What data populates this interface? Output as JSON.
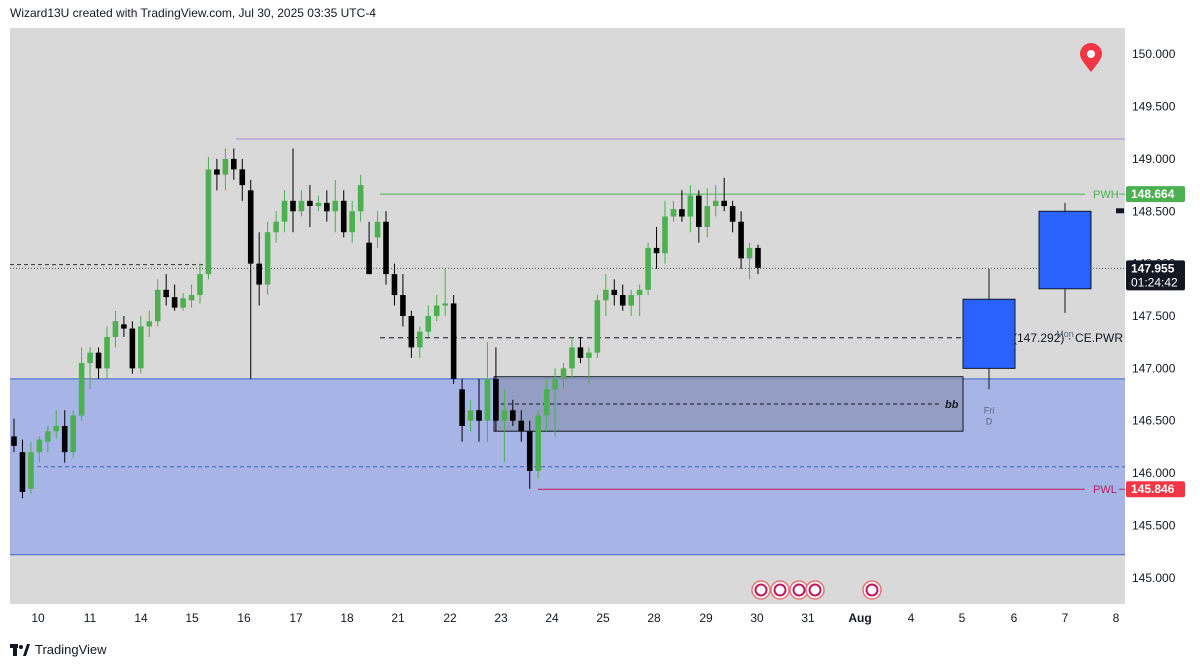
{
  "header": {
    "text": "Wizard13U created with TradingView.com, Jul 30, 2025 03:35 UTC-4"
  },
  "footer": {
    "brand": "TradingView"
  },
  "colors": {
    "plot_bg": "#d9d9d9",
    "zone_fill": "#a6b4e6",
    "zone_line": "#3f63c9",
    "bull": "#4caf50",
    "bear": "#000000",
    "pwh": "#4caf50",
    "pwl": "#c2185b",
    "purple_line": "#b48ad6",
    "forecast": "#2962ff",
    "pin": "#f23645"
  },
  "chart_data": {
    "type": "candlestick",
    "title": "",
    "yrange": [
      144.75,
      150.25
    ],
    "price_ticks": [
      "150.000",
      "149.500",
      "149.000",
      "148.500",
      "148.000",
      "147.500",
      "147.000",
      "146.500",
      "146.000",
      "145.500",
      "145.000"
    ],
    "date_ticks": [
      {
        "label": "10",
        "bold": false
      },
      {
        "label": "11",
        "bold": false
      },
      {
        "label": "14",
        "bold": false
      },
      {
        "label": "15",
        "bold": false
      },
      {
        "label": "16",
        "bold": false
      },
      {
        "label": "17",
        "bold": false
      },
      {
        "label": "18",
        "bold": false
      },
      {
        "label": "21",
        "bold": false
      },
      {
        "label": "22",
        "bold": false
      },
      {
        "label": "23",
        "bold": false
      },
      {
        "label": "24",
        "bold": false
      },
      {
        "label": "25",
        "bold": false
      },
      {
        "label": "28",
        "bold": false
      },
      {
        "label": "29",
        "bold": false
      },
      {
        "label": "30",
        "bold": false
      },
      {
        "label": "31",
        "bold": false
      },
      {
        "label": "Aug",
        "bold": true
      },
      {
        "label": "4",
        "bold": false
      },
      {
        "label": "5",
        "bold": false
      },
      {
        "label": "6",
        "bold": false
      },
      {
        "label": "7",
        "bold": false
      },
      {
        "label": "8",
        "bold": false
      }
    ],
    "current_price": "147.955",
    "countdown": "01:24:42",
    "pwh": {
      "label": "PWH",
      "price": 148.664,
      "price_text": "148.664"
    },
    "pwl": {
      "label": "PWL",
      "price": 145.846,
      "price_text": "145.846"
    },
    "purple_level": 149.19,
    "demand_zone": {
      "top": 146.9,
      "bottom": 145.22,
      "mid": 146.06
    },
    "bb_box": {
      "top": 146.92,
      "bottom": 146.4,
      "mid": 146.66,
      "label": "bb"
    },
    "ce_pwr": {
      "price": 147.292,
      "label": "0.5 (147.292) · CE.PWR"
    },
    "dotted_levels": [
      147.99,
      147.955
    ],
    "forecast": [
      {
        "open": 147.0,
        "close": 147.66,
        "high": 147.95,
        "low": 146.8,
        "label_day": "Fri",
        "label_sub": "D"
      },
      {
        "open": 147.76,
        "close": 148.5,
        "high": 148.58,
        "low": 147.53,
        "label_day": "Mon",
        "label_sub": ""
      }
    ],
    "candles": [
      {
        "o": 146.35,
        "h": 146.52,
        "l": 146.2,
        "c": 146.26
      },
      {
        "o": 146.2,
        "h": 146.32,
        "l": 145.76,
        "c": 145.82
      },
      {
        "o": 145.85,
        "h": 146.3,
        "l": 145.8,
        "c": 146.2
      },
      {
        "o": 146.2,
        "h": 146.35,
        "l": 146.1,
        "c": 146.32
      },
      {
        "o": 146.3,
        "h": 146.45,
        "l": 146.2,
        "c": 146.4
      },
      {
        "o": 146.4,
        "h": 146.6,
        "l": 146.33,
        "c": 146.45
      },
      {
        "o": 146.45,
        "h": 146.6,
        "l": 146.1,
        "c": 146.2
      },
      {
        "o": 146.2,
        "h": 146.6,
        "l": 146.15,
        "c": 146.55
      },
      {
        "o": 146.55,
        "h": 147.2,
        "l": 146.5,
        "c": 147.05
      },
      {
        "o": 147.05,
        "h": 147.2,
        "l": 146.8,
        "c": 147.15
      },
      {
        "o": 147.15,
        "h": 147.2,
        "l": 146.9,
        "c": 147.0
      },
      {
        "o": 147.0,
        "h": 147.4,
        "l": 146.9,
        "c": 147.3
      },
      {
        "o": 147.3,
        "h": 147.55,
        "l": 147.2,
        "c": 147.45
      },
      {
        "o": 147.42,
        "h": 147.5,
        "l": 147.3,
        "c": 147.38
      },
      {
        "o": 147.38,
        "h": 147.45,
        "l": 146.95,
        "c": 147.0
      },
      {
        "o": 147.0,
        "h": 147.5,
        "l": 146.95,
        "c": 147.4
      },
      {
        "o": 147.4,
        "h": 147.55,
        "l": 147.3,
        "c": 147.45
      },
      {
        "o": 147.45,
        "h": 147.85,
        "l": 147.4,
        "c": 147.75
      },
      {
        "o": 147.75,
        "h": 147.9,
        "l": 147.6,
        "c": 147.68
      },
      {
        "o": 147.68,
        "h": 147.8,
        "l": 147.55,
        "c": 147.58
      },
      {
        "o": 147.58,
        "h": 147.72,
        "l": 147.55,
        "c": 147.67
      },
      {
        "o": 147.65,
        "h": 147.8,
        "l": 147.58,
        "c": 147.7
      },
      {
        "o": 147.7,
        "h": 148.0,
        "l": 147.62,
        "c": 147.9
      },
      {
        "o": 147.9,
        "h": 149.02,
        "l": 147.85,
        "c": 148.9
      },
      {
        "o": 148.9,
        "h": 149.0,
        "l": 148.7,
        "c": 148.85
      },
      {
        "o": 148.85,
        "h": 149.1,
        "l": 148.7,
        "c": 149.0
      },
      {
        "o": 149.0,
        "h": 149.1,
        "l": 148.8,
        "c": 148.9
      },
      {
        "o": 148.9,
        "h": 149.0,
        "l": 148.6,
        "c": 148.75
      },
      {
        "o": 148.7,
        "h": 148.8,
        "l": 146.9,
        "c": 148.0
      },
      {
        "o": 148.0,
        "h": 148.3,
        "l": 147.6,
        "c": 147.8
      },
      {
        "o": 147.8,
        "h": 148.4,
        "l": 147.7,
        "c": 148.3
      },
      {
        "o": 148.3,
        "h": 148.5,
        "l": 148.2,
        "c": 148.4
      },
      {
        "o": 148.4,
        "h": 148.7,
        "l": 148.3,
        "c": 148.6
      },
      {
        "o": 148.6,
        "h": 149.1,
        "l": 148.3,
        "c": 148.5
      },
      {
        "o": 148.5,
        "h": 148.7,
        "l": 148.45,
        "c": 148.6
      },
      {
        "o": 148.6,
        "h": 148.75,
        "l": 148.35,
        "c": 148.55
      },
      {
        "o": 148.55,
        "h": 148.65,
        "l": 148.5,
        "c": 148.58
      },
      {
        "o": 148.58,
        "h": 148.7,
        "l": 148.4,
        "c": 148.5
      },
      {
        "o": 148.5,
        "h": 148.8,
        "l": 148.3,
        "c": 148.6
      },
      {
        "o": 148.6,
        "h": 148.7,
        "l": 148.25,
        "c": 148.3
      },
      {
        "o": 148.3,
        "h": 148.6,
        "l": 148.2,
        "c": 148.5
      },
      {
        "o": 148.5,
        "h": 148.85,
        "l": 148.4,
        "c": 148.75
      },
      {
        "o": 148.2,
        "h": 148.4,
        "l": 147.9,
        "c": 147.9
      },
      {
        "o": 148.25,
        "h": 148.5,
        "l": 148.15,
        "c": 148.4
      },
      {
        "o": 148.4,
        "h": 148.5,
        "l": 147.8,
        "c": 147.9
      },
      {
        "o": 147.9,
        "h": 148.0,
        "l": 147.6,
        "c": 147.7
      },
      {
        "o": 147.7,
        "h": 147.9,
        "l": 147.4,
        "c": 147.5
      },
      {
        "o": 147.5,
        "h": 147.55,
        "l": 147.1,
        "c": 147.2
      },
      {
        "o": 147.2,
        "h": 147.4,
        "l": 147.1,
        "c": 147.35
      },
      {
        "o": 147.35,
        "h": 147.6,
        "l": 147.3,
        "c": 147.5
      },
      {
        "o": 147.5,
        "h": 147.7,
        "l": 147.45,
        "c": 147.6
      },
      {
        "o": 147.6,
        "h": 147.95,
        "l": 147.5,
        "c": 147.62
      },
      {
        "o": 147.62,
        "h": 147.7,
        "l": 146.85,
        "c": 146.9
      },
      {
        "o": 146.8,
        "h": 146.9,
        "l": 146.3,
        "c": 146.45
      },
      {
        "o": 146.5,
        "h": 146.7,
        "l": 146.4,
        "c": 146.6
      },
      {
        "o": 146.6,
        "h": 146.9,
        "l": 146.3,
        "c": 146.5
      },
      {
        "o": 146.5,
        "h": 147.25,
        "l": 146.3,
        "c": 146.9
      },
      {
        "o": 146.9,
        "h": 147.2,
        "l": 146.4,
        "c": 146.5
      },
      {
        "o": 146.5,
        "h": 146.8,
        "l": 146.1,
        "c": 146.6
      },
      {
        "o": 146.6,
        "h": 146.7,
        "l": 146.45,
        "c": 146.5
      },
      {
        "o": 146.5,
        "h": 146.6,
        "l": 146.3,
        "c": 146.4
      },
      {
        "o": 146.4,
        "h": 146.5,
        "l": 145.85,
        "c": 146.02
      },
      {
        "o": 146.02,
        "h": 146.6,
        "l": 145.95,
        "c": 146.55
      },
      {
        "o": 146.55,
        "h": 146.9,
        "l": 146.4,
        "c": 146.8
      },
      {
        "o": 146.8,
        "h": 147.0,
        "l": 146.35,
        "c": 146.9
      },
      {
        "o": 146.9,
        "h": 147.05,
        "l": 146.8,
        "c": 147.0
      },
      {
        "o": 147.0,
        "h": 147.3,
        "l": 146.9,
        "c": 147.2
      },
      {
        "o": 147.2,
        "h": 147.3,
        "l": 147.05,
        "c": 147.1
      },
      {
        "o": 147.1,
        "h": 147.2,
        "l": 146.85,
        "c": 147.15
      },
      {
        "o": 147.15,
        "h": 147.7,
        "l": 147.1,
        "c": 147.65
      },
      {
        "o": 147.65,
        "h": 147.9,
        "l": 147.5,
        "c": 147.75
      },
      {
        "o": 147.75,
        "h": 147.85,
        "l": 147.6,
        "c": 147.7
      },
      {
        "o": 147.7,
        "h": 147.8,
        "l": 147.55,
        "c": 147.6
      },
      {
        "o": 147.6,
        "h": 147.75,
        "l": 147.5,
        "c": 147.7
      },
      {
        "o": 147.7,
        "h": 147.8,
        "l": 147.5,
        "c": 147.75
      },
      {
        "o": 147.75,
        "h": 148.2,
        "l": 147.7,
        "c": 148.15
      },
      {
        "o": 148.15,
        "h": 148.35,
        "l": 147.95,
        "c": 148.1
      },
      {
        "o": 148.1,
        "h": 148.6,
        "l": 148.0,
        "c": 148.45
      },
      {
        "o": 148.45,
        "h": 148.6,
        "l": 148.4,
        "c": 148.52
      },
      {
        "o": 148.52,
        "h": 148.7,
        "l": 148.4,
        "c": 148.45
      },
      {
        "o": 148.45,
        "h": 148.75,
        "l": 148.3,
        "c": 148.65
      },
      {
        "o": 148.65,
        "h": 148.7,
        "l": 148.2,
        "c": 148.35
      },
      {
        "o": 148.35,
        "h": 148.72,
        "l": 148.25,
        "c": 148.55
      },
      {
        "o": 148.55,
        "h": 148.75,
        "l": 148.45,
        "c": 148.6
      },
      {
        "o": 148.6,
        "h": 148.82,
        "l": 148.5,
        "c": 148.55
      },
      {
        "o": 148.55,
        "h": 148.6,
        "l": 148.3,
        "c": 148.4
      },
      {
        "o": 148.4,
        "h": 148.5,
        "l": 147.95,
        "c": 148.05
      },
      {
        "o": 148.05,
        "h": 148.2,
        "l": 147.85,
        "c": 148.15
      },
      {
        "o": 148.15,
        "h": 148.18,
        "l": 147.9,
        "c": 147.96
      }
    ]
  }
}
